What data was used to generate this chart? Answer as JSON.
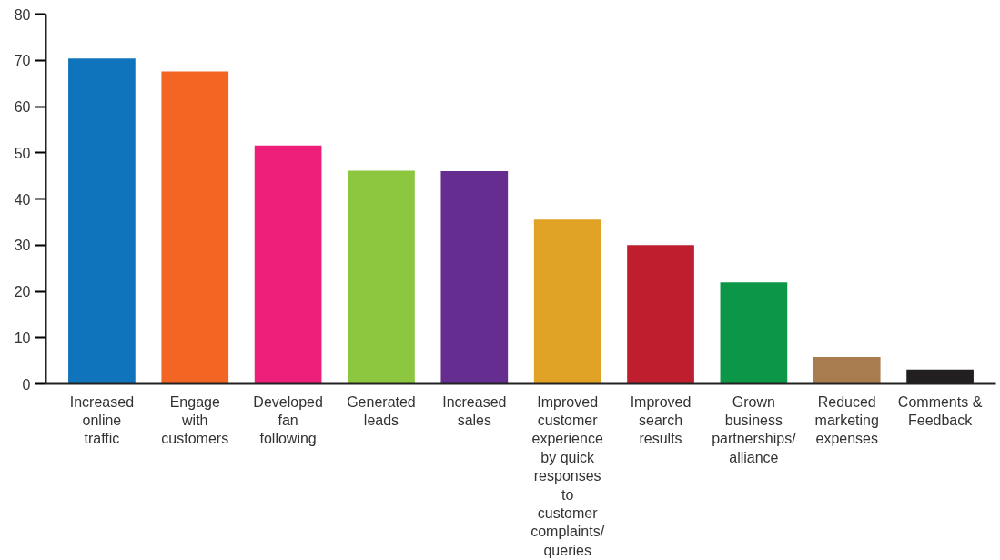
{
  "chart_data": {
    "type": "bar",
    "categories": [
      "Increased online traffic",
      "Engage with customers",
      "Developed fan following",
      "Generated leads",
      "Increased sales",
      "Improved customer experience by quick responses to customer complaints/ queries",
      "Improved search results",
      "Grown business partnerships/ alliance",
      "Reduced marketing expenses",
      "Comments & Feedback"
    ],
    "values": [
      70.4,
      67.6,
      51.6,
      46.1,
      46,
      35.5,
      30,
      21.9,
      5.8,
      3.1
    ],
    "colors": [
      "#1074bc",
      "#f26522",
      "#ed1f7b",
      "#8dc63f",
      "#662d91",
      "#e1a325",
      "#be1e2d",
      "#0c9648",
      "#a97c50",
      "#231f20"
    ],
    "ylim": [
      0,
      80
    ],
    "yticks": [
      0,
      10,
      20,
      30,
      40,
      50,
      60,
      70,
      80
    ],
    "grid": false
  }
}
